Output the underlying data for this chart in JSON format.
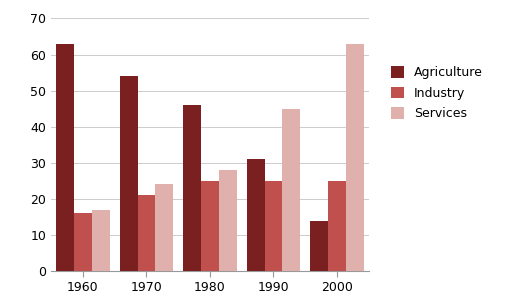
{
  "years": [
    "1960",
    "1970",
    "1980",
    "1990",
    "2000"
  ],
  "agriculture": [
    63,
    54,
    46,
    31,
    14
  ],
  "industry": [
    16,
    21,
    25,
    25,
    25
  ],
  "services": [
    17,
    24,
    28,
    45,
    63
  ],
  "colors": {
    "agriculture": "#7B2020",
    "industry": "#C0504D",
    "services": "#DFB0AC"
  },
  "legend_labels": [
    "Agriculture",
    "Industry",
    "Services"
  ],
  "ylim": [
    0,
    70
  ],
  "yticks": [
    0,
    10,
    20,
    30,
    40,
    50,
    60,
    70
  ],
  "bar_width": 0.28,
  "background_color": "#FFFFFF",
  "grid_color": "#CCCCCC",
  "tick_fontsize": 9,
  "legend_fontsize": 9
}
